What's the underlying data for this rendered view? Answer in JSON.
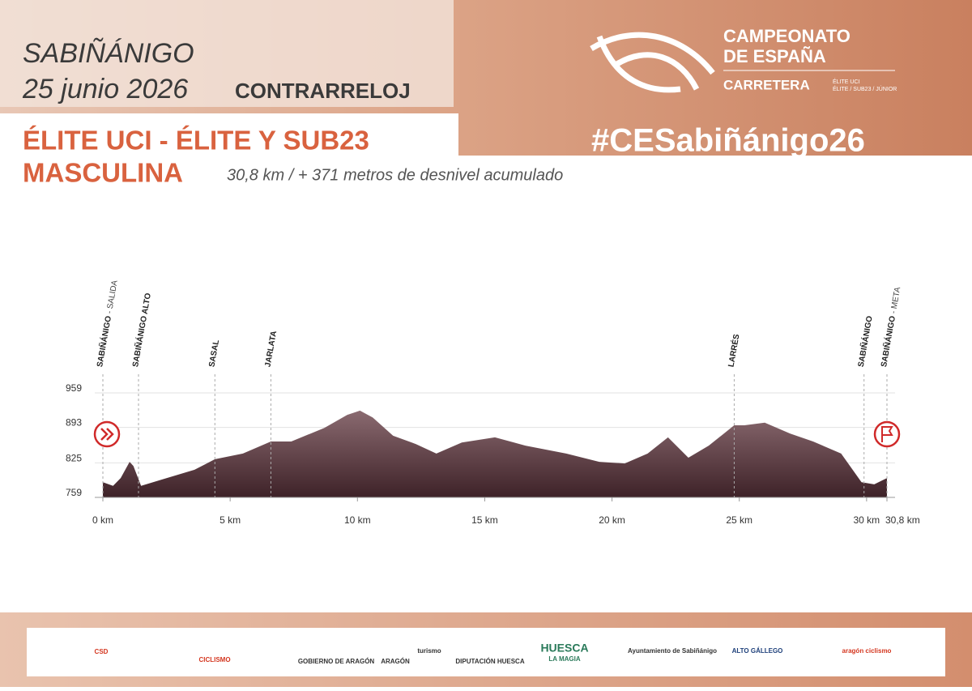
{
  "header": {
    "city": "SABIÑÁNIGO",
    "date": "25 junio 2026",
    "stage": "CONTRARRELOJ",
    "category_line1": "ÉLITE UCI - ÉLITE Y SUB23",
    "category_line2": "MASCULINA",
    "details": "30,8 km / + 371 metros de desnivel acumulado",
    "logo_line1": "CAMPEONATO",
    "logo_line2": "DE ESPAÑA",
    "logo_line3": "CARRETERA",
    "logo_sub1": "ÉLITE UCI",
    "logo_sub2": "ÉLITE / SUB23 / JÚNIOR",
    "hashtag": "#CESabiñánigo26"
  },
  "chart_data": {
    "type": "area",
    "color": "#5a3a40",
    "x": [
      0,
      0.4,
      0.7,
      1.05,
      1.2,
      1.5,
      2.3,
      3.6,
      4.4,
      5.5,
      6.6,
      7.4,
      8.7,
      9.6,
      10.1,
      10.6,
      11.4,
      12.3,
      13.1,
      14.1,
      15.4,
      16.6,
      18.2,
      19.5,
      20.5,
      21.4,
      22.2,
      23.0,
      23.8,
      24.8,
      25.2,
      26.0,
      27.0,
      27.9,
      29.0,
      29.8,
      30.3,
      30.8
    ],
    "values": [
      788,
      781,
      796,
      827,
      819,
      781,
      793,
      812,
      832,
      843,
      866,
      866,
      892,
      917,
      925,
      912,
      877,
      861,
      843,
      864,
      874,
      858,
      843,
      827,
      824,
      843,
      874,
      835,
      858,
      897,
      897,
      902,
      881,
      866,
      843,
      788,
      784,
      796
    ],
    "xlim": [
      0,
      30.8
    ],
    "ylim": [
      759,
      959
    ],
    "yticks": [
      759,
      825,
      893,
      959
    ],
    "xticks": [
      {
        "value": 0,
        "label": "0 km"
      },
      {
        "value": 5,
        "label": "5 km"
      },
      {
        "value": 10,
        "label": "10 km"
      },
      {
        "value": 15,
        "label": "15 km"
      },
      {
        "value": 20,
        "label": "20 km"
      },
      {
        "value": 25,
        "label": "25 km"
      },
      {
        "value": 30,
        "label": "30 km"
      },
      {
        "value": 30.8,
        "label": "30,8 km"
      }
    ],
    "grid": true,
    "annotations": [
      {
        "text": "SABIÑÁNIGO",
        "note": "- SALIDA",
        "x": 0
      },
      {
        "text": "SABIÑÁNIGO ALTO",
        "x": 1.4
      },
      {
        "text": "SASAL",
        "x": 4.4
      },
      {
        "text": "JARLATA",
        "x": 6.6
      },
      {
        "text": "LARRÉS",
        "x": 24.8
      },
      {
        "text": "SABIÑÁNIGO",
        "x": 29.9
      },
      {
        "text": "SABIÑÁNIGO",
        "note": "- META",
        "x": 30.8
      }
    ]
  },
  "footer": {
    "logos": [
      "CSD",
      "CICLISMO",
      "GOBIERNO DE ARAGÓN",
      "ARAGÓN",
      "turismo",
      "DIPUTACIÓN HUESCA",
      "HUESCA",
      "LA MAGIA",
      "Ayuntamiento de Sabiñánigo",
      "ALTO GÁLLEGO",
      "aragón ciclismo"
    ]
  }
}
